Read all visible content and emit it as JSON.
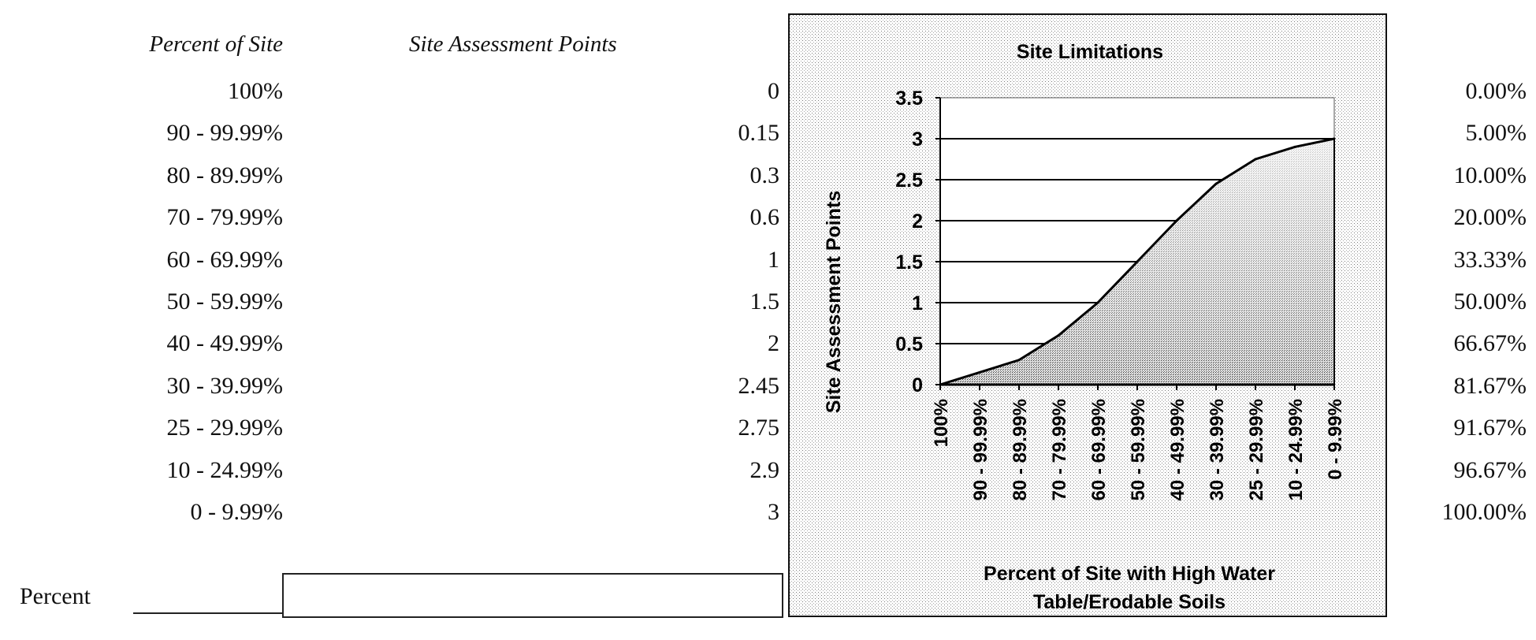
{
  "table": {
    "header_percent": "Percent of Site",
    "header_points": "Site Assessment Points",
    "rows": [
      {
        "percent": "100%",
        "points": "0",
        "cumulative": "0.00%"
      },
      {
        "percent": "90 - 99.99%",
        "points": "0.15",
        "cumulative": "5.00%"
      },
      {
        "percent": "80 - 89.99%",
        "points": "0.3",
        "cumulative": "10.00%"
      },
      {
        "percent": "70 - 79.99%",
        "points": "0.6",
        "cumulative": "20.00%"
      },
      {
        "percent": "60 - 69.99%",
        "points": "1",
        "cumulative": "33.33%"
      },
      {
        "percent": "50 - 59.99%",
        "points": "1.5",
        "cumulative": "50.00%"
      },
      {
        "percent": "40 - 49.99%",
        "points": "2",
        "cumulative": "66.67%"
      },
      {
        "percent": "30 - 39.99%",
        "points": "2.45",
        "cumulative": "81.67%"
      },
      {
        "percent": "25 - 29.99%",
        "points": "2.75",
        "cumulative": "91.67%"
      },
      {
        "percent": "10 - 24.99%",
        "points": "2.9",
        "cumulative": "96.67%"
      },
      {
        "percent": "0 - 9.99%",
        "points": "3",
        "cumulative": "100.00%"
      }
    ]
  },
  "form": {
    "percent_label": "Percent",
    "percent_value": ""
  },
  "chart_data": {
    "type": "area",
    "title": "Site Limitations",
    "xlabel": "Percent of Site with High Water Table/Erodable Soils",
    "xlabel_lines": [
      "Percent of Site with High Water",
      "Table/Erodable Soils"
    ],
    "ylabel": "Site Assessment Points",
    "categories": [
      "100%",
      "90 - 99.99%",
      "80 - 89.99%",
      "70 - 79.99%",
      "60 - 69.99%",
      "50 - 59.99%",
      "40 - 49.99%",
      "30 - 39.99%",
      "25 - 29.99%",
      "10 - 24.99%",
      "0 - 9.99%"
    ],
    "values": [
      0,
      0.15,
      0.3,
      0.6,
      1,
      1.5,
      2,
      2.45,
      2.75,
      2.9,
      3
    ],
    "ylim": [
      0,
      3.5
    ],
    "yticks": [
      "0",
      "0.5",
      "1",
      "1.5",
      "2",
      "2.5",
      "3",
      "3.5"
    ],
    "grid": true,
    "line_color": "#000000",
    "fill_color": "#777777"
  }
}
